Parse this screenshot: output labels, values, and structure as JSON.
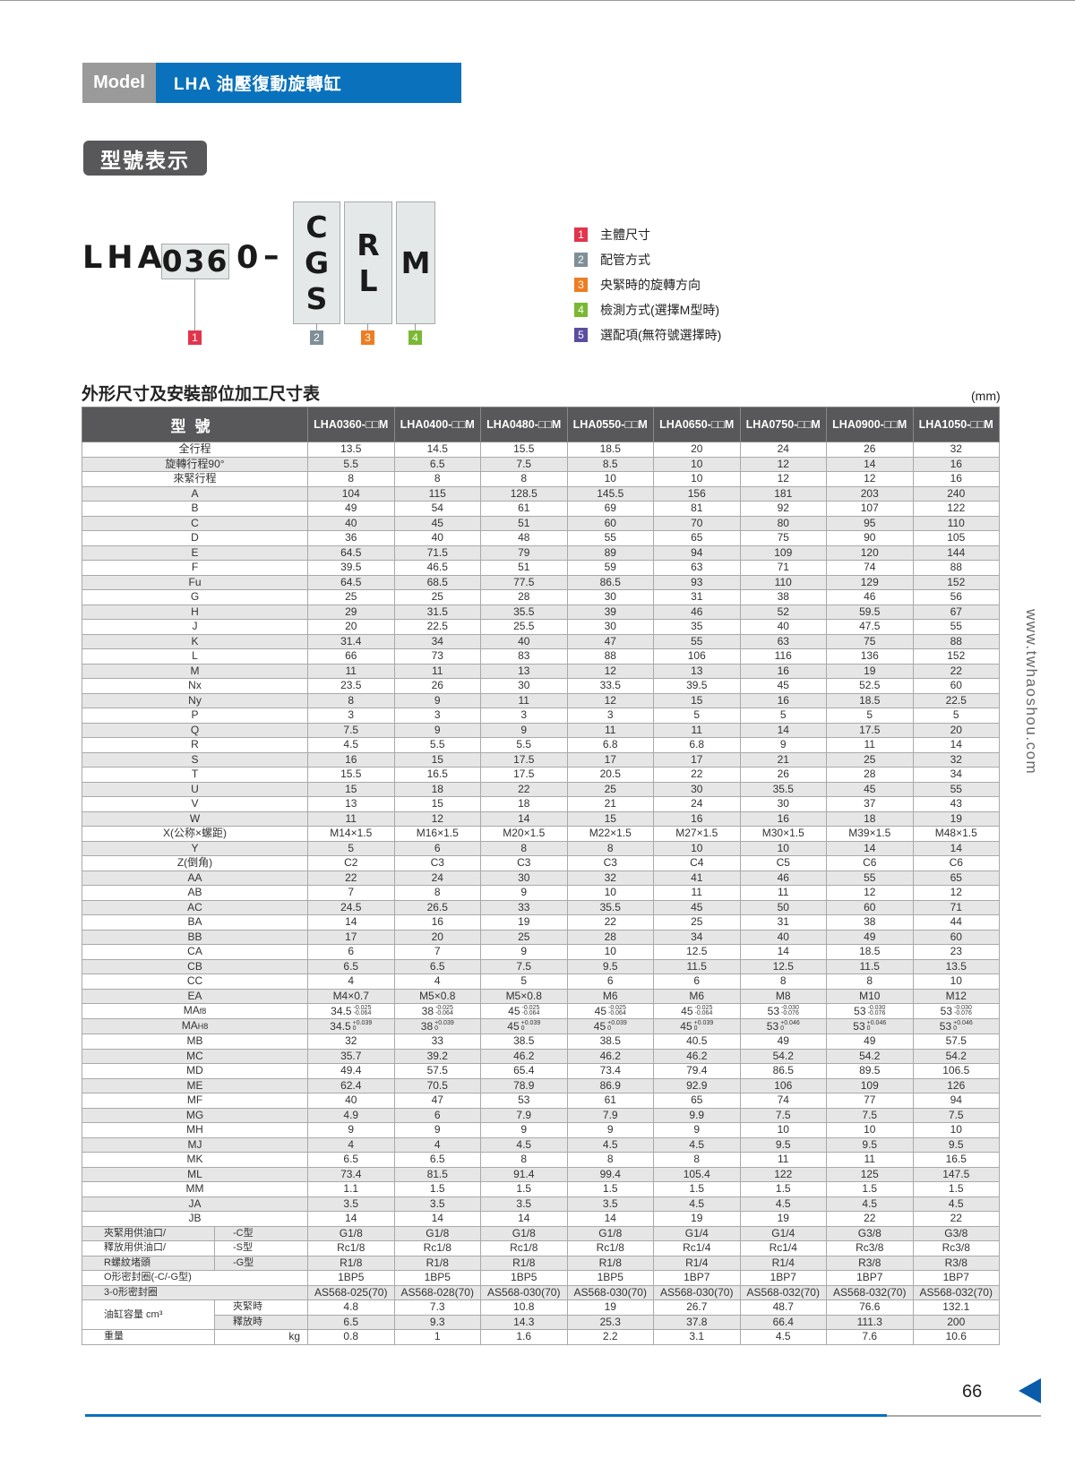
{
  "header": {
    "model_tag": "Model",
    "title": "LHA  油壓復動旋轉缸"
  },
  "section_model": {
    "title": "型號表示"
  },
  "model_code": {
    "prefix": "LHA",
    "size": "036",
    "zero": "0",
    "dash": "–",
    "box2": [
      "C",
      "G",
      "S"
    ],
    "box3": [
      "R",
      "L"
    ],
    "box4": [
      "M"
    ],
    "markers": [
      "1",
      "2",
      "3",
      "4"
    ]
  },
  "legend": [
    {
      "num": "1",
      "label": "主體尺寸",
      "color": "#e3344d"
    },
    {
      "num": "2",
      "label": "配管方式",
      "color": "#7f8f97"
    },
    {
      "num": "3",
      "label": "央緊時的旋轉方向",
      "color": "#ee7d22"
    },
    {
      "num": "4",
      "label": "檢測方式(選擇M型時)",
      "color": "#7ab834"
    },
    {
      "num": "5",
      "label": "選配項(無符號選擇時)",
      "color": "#5a4ea0"
    }
  ],
  "table": {
    "title": "外形尺寸及安裝部位加工尺寸表",
    "unit": "(mm)",
    "header_label": "型號",
    "columns": [
      "LHA0360-□□M",
      "LHA0400-□□M",
      "LHA0480-□□M",
      "LHA0550-□□M",
      "LHA0650-□□M",
      "LHA0750-□□M",
      "LHA0900-□□M",
      "LHA1050-□□M"
    ],
    "rows": [
      {
        "label": "全行程",
        "values": [
          "13.5",
          "14.5",
          "15.5",
          "18.5",
          "20",
          "24",
          "26",
          "32"
        ]
      },
      {
        "label": "旋轉行程90°",
        "values": [
          "5.5",
          "6.5",
          "7.5",
          "8.5",
          "10",
          "12",
          "14",
          "16"
        ]
      },
      {
        "label": "來緊行程",
        "values": [
          "8",
          "8",
          "8",
          "10",
          "10",
          "12",
          "12",
          "16"
        ]
      },
      {
        "label": "A",
        "values": [
          "104",
          "115",
          "128.5",
          "145.5",
          "156",
          "181",
          "203",
          "240"
        ]
      },
      {
        "label": "B",
        "values": [
          "49",
          "54",
          "61",
          "69",
          "81",
          "92",
          "107",
          "122"
        ]
      },
      {
        "label": "C",
        "values": [
          "40",
          "45",
          "51",
          "60",
          "70",
          "80",
          "95",
          "110"
        ]
      },
      {
        "label": "D",
        "values": [
          "36",
          "40",
          "48",
          "55",
          "65",
          "75",
          "90",
          "105"
        ]
      },
      {
        "label": "E",
        "values": [
          "64.5",
          "71.5",
          "79",
          "89",
          "94",
          "109",
          "120",
          "144"
        ]
      },
      {
        "label": "F",
        "values": [
          "39.5",
          "46.5",
          "51",
          "59",
          "63",
          "71",
          "74",
          "88"
        ]
      },
      {
        "label": "Fu",
        "values": [
          "64.5",
          "68.5",
          "77.5",
          "86.5",
          "93",
          "110",
          "129",
          "152"
        ]
      },
      {
        "label": "G",
        "values": [
          "25",
          "25",
          "28",
          "30",
          "31",
          "38",
          "46",
          "56"
        ]
      },
      {
        "label": "H",
        "values": [
          "29",
          "31.5",
          "35.5",
          "39",
          "46",
          "52",
          "59.5",
          "67"
        ]
      },
      {
        "label": "J",
        "values": [
          "20",
          "22.5",
          "25.5",
          "30",
          "35",
          "40",
          "47.5",
          "55"
        ]
      },
      {
        "label": "K",
        "values": [
          "31.4",
          "34",
          "40",
          "47",
          "55",
          "63",
          "75",
          "88"
        ]
      },
      {
        "label": "L",
        "values": [
          "66",
          "73",
          "83",
          "88",
          "106",
          "116",
          "136",
          "152"
        ]
      },
      {
        "label": "M",
        "values": [
          "11",
          "11",
          "13",
          "12",
          "13",
          "16",
          "19",
          "22"
        ]
      },
      {
        "label": "Nx",
        "values": [
          "23.5",
          "26",
          "30",
          "33.5",
          "39.5",
          "45",
          "52.5",
          "60"
        ]
      },
      {
        "label": "Ny",
        "values": [
          "8",
          "9",
          "11",
          "12",
          "15",
          "16",
          "18.5",
          "22.5"
        ]
      },
      {
        "label": "P",
        "values": [
          "3",
          "3",
          "3",
          "3",
          "5",
          "5",
          "5",
          "5"
        ]
      },
      {
        "label": "Q",
        "values": [
          "7.5",
          "9",
          "9",
          "11",
          "11",
          "14",
          "17.5",
          "20"
        ]
      },
      {
        "label": "R",
        "values": [
          "4.5",
          "5.5",
          "5.5",
          "6.8",
          "6.8",
          "9",
          "11",
          "14"
        ]
      },
      {
        "label": "S",
        "values": [
          "16",
          "15",
          "17.5",
          "17",
          "17",
          "21",
          "25",
          "32"
        ]
      },
      {
        "label": "T",
        "values": [
          "15.5",
          "16.5",
          "17.5",
          "20.5",
          "22",
          "26",
          "28",
          "34"
        ]
      },
      {
        "label": "U",
        "values": [
          "15",
          "18",
          "22",
          "25",
          "30",
          "35.5",
          "45",
          "55"
        ]
      },
      {
        "label": "V",
        "values": [
          "13",
          "15",
          "18",
          "21",
          "24",
          "30",
          "37",
          "43"
        ]
      },
      {
        "label": "W",
        "values": [
          "11",
          "12",
          "14",
          "15",
          "16",
          "16",
          "18",
          "19"
        ]
      },
      {
        "label": "X(公称×螺距)",
        "values": [
          "M14×1.5",
          "M16×1.5",
          "M20×1.5",
          "M22×1.5",
          "M27×1.5",
          "M30×1.5",
          "M39×1.5",
          "M48×1.5"
        ]
      },
      {
        "label": "Y",
        "values": [
          "5",
          "6",
          "8",
          "8",
          "10",
          "10",
          "14",
          "14"
        ]
      },
      {
        "label": "Z(倒角)",
        "values": [
          "C2",
          "C3",
          "C3",
          "C3",
          "C4",
          "C5",
          "C6",
          "C6"
        ]
      },
      {
        "label": "AA",
        "values": [
          "22",
          "24",
          "30",
          "32",
          "41",
          "46",
          "55",
          "65"
        ]
      },
      {
        "label": "AB",
        "values": [
          "7",
          "8",
          "9",
          "10",
          "11",
          "11",
          "12",
          "12"
        ]
      },
      {
        "label": "AC",
        "values": [
          "24.5",
          "26.5",
          "33",
          "35.5",
          "45",
          "50",
          "60",
          "71"
        ]
      },
      {
        "label": "BA",
        "values": [
          "14",
          "16",
          "19",
          "22",
          "25",
          "31",
          "38",
          "44"
        ]
      },
      {
        "label": "BB",
        "values": [
          "17",
          "20",
          "25",
          "28",
          "34",
          "40",
          "49",
          "60"
        ]
      },
      {
        "label": "CA",
        "values": [
          "6",
          "7",
          "9",
          "10",
          "12.5",
          "14",
          "18.5",
          "23"
        ]
      },
      {
        "label": "CB",
        "values": [
          "6.5",
          "6.5",
          "7.5",
          "9.5",
          "11.5",
          "12.5",
          "11.5",
          "13.5"
        ]
      },
      {
        "label": "CC",
        "values": [
          "4",
          "4",
          "5",
          "6",
          "6",
          "8",
          "8",
          "10"
        ]
      },
      {
        "label": "EA",
        "values": [
          "M4×0.7",
          "M5×0.8",
          "M5×0.8",
          "M6",
          "M6",
          "M8",
          "M10",
          "M12"
        ]
      },
      {
        "label": "MA",
        "suffix": "f8",
        "tolerances": [
          {
            "base": "34.5",
            "upper": "-0.025",
            "lower": "-0.064"
          },
          {
            "base": "38",
            "upper": "-0.025",
            "lower": "-0.064"
          },
          {
            "base": "45",
            "upper": "-0.025",
            "lower": "-0.064"
          },
          {
            "base": "45",
            "upper": "-0.025",
            "lower": "-0.064"
          },
          {
            "base": "45",
            "upper": "-0.025",
            "lower": "-0.064"
          },
          {
            "base": "53",
            "upper": "-0.030",
            "lower": "-0.076"
          },
          {
            "base": "53",
            "upper": "-0.030",
            "lower": "-0.076"
          },
          {
            "base": "53",
            "upper": "-0.030",
            "lower": "-0.076"
          }
        ]
      },
      {
        "label": "MA",
        "suffix": "H8",
        "tolerances": [
          {
            "base": "34.5",
            "upper": "+0.039",
            "lower": "0"
          },
          {
            "base": "38",
            "upper": "+0.039",
            "lower": "0"
          },
          {
            "base": "45",
            "upper": "+0.039",
            "lower": "0"
          },
          {
            "base": "45",
            "upper": "+0.039",
            "lower": "0"
          },
          {
            "base": "45",
            "upper": "+0.039",
            "lower": "0"
          },
          {
            "base": "53",
            "upper": "+0.046",
            "lower": "0"
          },
          {
            "base": "53",
            "upper": "+0.046",
            "lower": "0"
          },
          {
            "base": "53",
            "upper": "+0.046",
            "lower": "0"
          }
        ]
      },
      {
        "label": "MB",
        "values": [
          "32",
          "33",
          "38.5",
          "38.5",
          "40.5",
          "49",
          "49",
          "57.5"
        ]
      },
      {
        "label": "MC",
        "values": [
          "35.7",
          "39.2",
          "46.2",
          "46.2",
          "46.2",
          "54.2",
          "54.2",
          "54.2"
        ]
      },
      {
        "label": "MD",
        "values": [
          "49.4",
          "57.5",
          "65.4",
          "73.4",
          "79.4",
          "86.5",
          "89.5",
          "106.5"
        ]
      },
      {
        "label": "ME",
        "values": [
          "62.4",
          "70.5",
          "78.9",
          "86.9",
          "92.9",
          "106",
          "109",
          "126"
        ]
      },
      {
        "label": "MF",
        "values": [
          "40",
          "47",
          "53",
          "61",
          "65",
          "74",
          "77",
          "94"
        ]
      },
      {
        "label": "MG",
        "values": [
          "4.9",
          "6",
          "7.9",
          "7.9",
          "9.9",
          "7.5",
          "7.5",
          "7.5"
        ]
      },
      {
        "label": "MH",
        "values": [
          "9",
          "9",
          "9",
          "9",
          "9",
          "10",
          "10",
          "10"
        ]
      },
      {
        "label": "MJ",
        "values": [
          "4",
          "4",
          "4.5",
          "4.5",
          "4.5",
          "9.5",
          "9.5",
          "9.5"
        ]
      },
      {
        "label": "MK",
        "values": [
          "6.5",
          "6.5",
          "8",
          "8",
          "8",
          "11",
          "11",
          "16.5"
        ]
      },
      {
        "label": "ML",
        "values": [
          "73.4",
          "81.5",
          "91.4",
          "99.4",
          "105.4",
          "122",
          "125",
          "147.5"
        ]
      },
      {
        "label": "MM",
        "values": [
          "1.1",
          "1.5",
          "1.5",
          "1.5",
          "1.5",
          "1.5",
          "1.5",
          "1.5"
        ]
      },
      {
        "label": "JA",
        "values": [
          "3.5",
          "3.5",
          "3.5",
          "3.5",
          "4.5",
          "4.5",
          "4.5",
          "4.5"
        ]
      },
      {
        "label": "JB",
        "values": [
          "14",
          "14",
          "14",
          "14",
          "19",
          "19",
          "22",
          "22"
        ]
      }
    ],
    "port_rows": [
      {
        "label": "夾緊用供油口/",
        "sub": "-C型",
        "values": [
          "G1/8",
          "G1/8",
          "G1/8",
          "G1/8",
          "G1/4",
          "G1/4",
          "G3/8",
          "G3/8"
        ]
      },
      {
        "label": "釋放用供油口/",
        "sub": "-S型",
        "values": [
          "Rc1/8",
          "Rc1/8",
          "Rc1/8",
          "Rc1/8",
          "Rc1/4",
          "Rc1/4",
          "Rc3/8",
          "Rc3/8"
        ]
      },
      {
        "label": "R螺紋堵頭",
        "sub": "-G型",
        "values": [
          "R1/8",
          "R1/8",
          "R1/8",
          "R1/8",
          "R1/4",
          "R1/4",
          "R3/8",
          "R3/8"
        ]
      }
    ],
    "seal_rows": [
      {
        "label": "O形密封圈(-C/-G型)",
        "values": [
          "1BP5",
          "1BP5",
          "1BP5",
          "1BP5",
          "1BP7",
          "1BP7",
          "1BP7",
          "1BP7"
        ]
      },
      {
        "label": "3-0形密封圈",
        "values": [
          "AS568-025(70)",
          "AS568-028(70)",
          "AS568-030(70)",
          "AS568-030(70)",
          "AS568-030(70)",
          "AS568-032(70)",
          "AS568-032(70)",
          "AS568-032(70)"
        ]
      }
    ],
    "capacity": {
      "label": "油缸容量  cm³",
      "rows": [
        {
          "sub": "夾緊時",
          "values": [
            "4.8",
            "7.3",
            "10.8",
            "19",
            "26.7",
            "48.7",
            "76.6",
            "132.1"
          ]
        },
        {
          "sub": "釋放時",
          "values": [
            "6.5",
            "9.3",
            "14.3",
            "25.3",
            "37.8",
            "66.4",
            "111.3",
            "200"
          ]
        }
      ]
    },
    "weight": {
      "label": "重量",
      "unit": "kg",
      "values": [
        "0.8",
        "1",
        "1.6",
        "2.2",
        "3.1",
        "4.5",
        "7.6",
        "10.6"
      ]
    }
  },
  "side_text": "www.twhaoshou.com",
  "footer": {
    "page_number": "66"
  }
}
